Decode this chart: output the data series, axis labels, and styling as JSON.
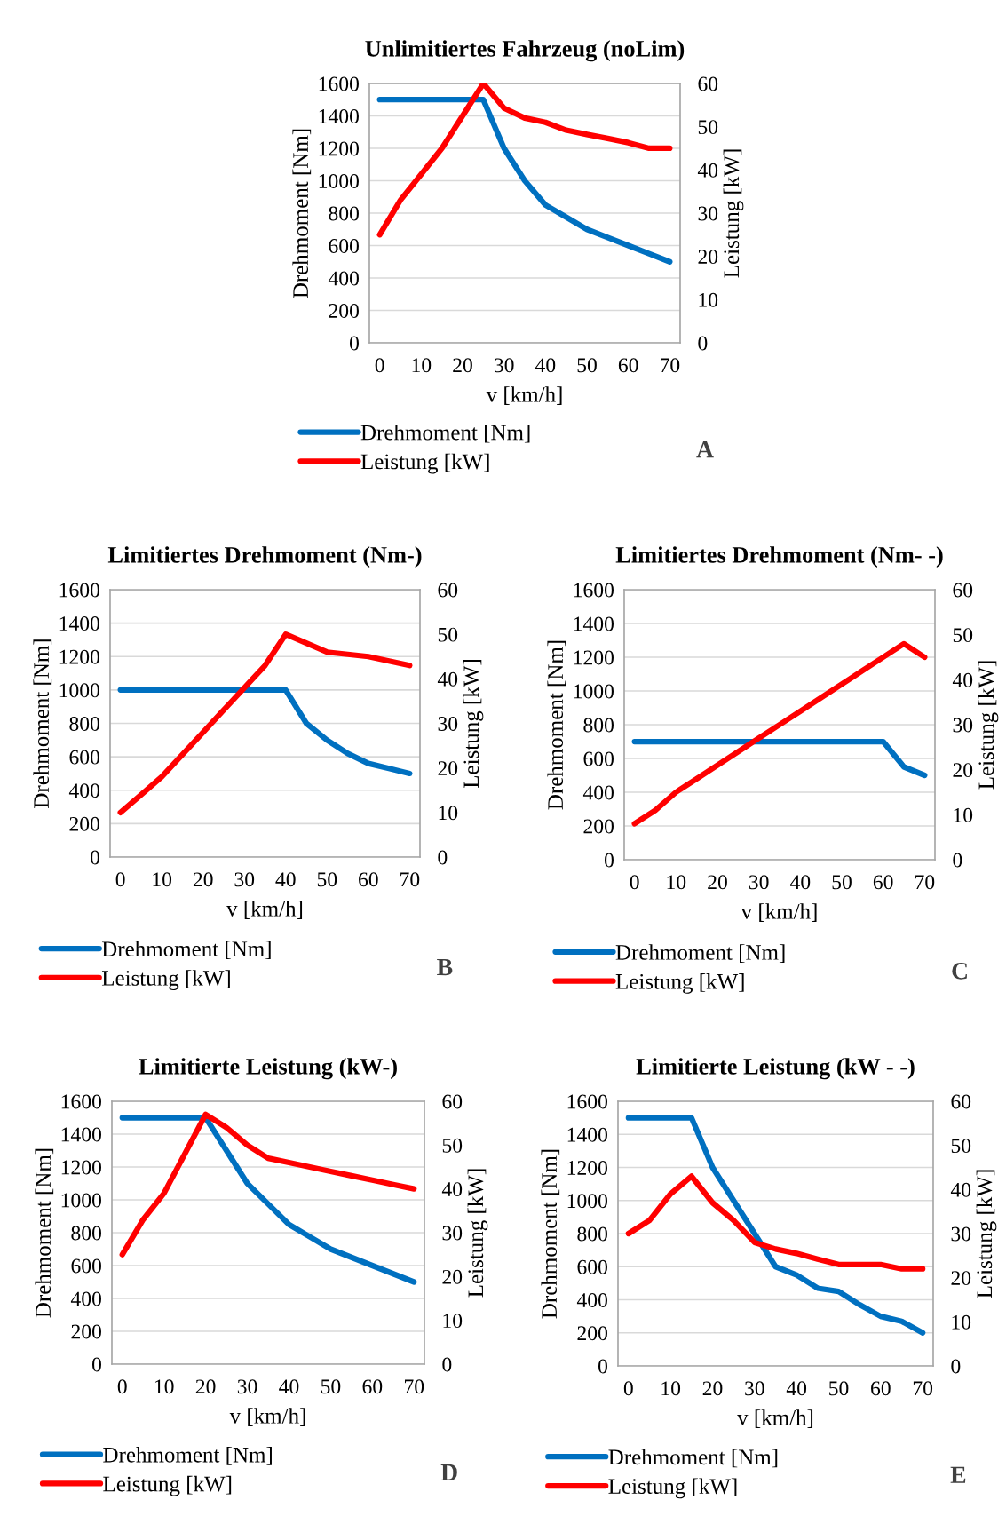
{
  "chart_data": [
    {
      "type": "line",
      "title": "Unlimitiertes Fahrzeug (noLim)",
      "xlabel": "v [km/h]",
      "ylabel": "Drehmoment [Nm]",
      "y2label": "Leistung [kW]",
      "categories": [
        "0",
        null,
        "10",
        null,
        "20",
        null,
        "30",
        null,
        "40",
        null,
        "50",
        null,
        "60",
        null,
        "70"
      ],
      "ylim": [
        0,
        1600
      ],
      "yticks": [
        0,
        200,
        400,
        600,
        800,
        1000,
        1200,
        1400,
        1600
      ],
      "y2lim": [
        0,
        60
      ],
      "y2ticks": [
        0,
        10,
        20,
        30,
        40,
        50,
        60
      ],
      "grid": true,
      "legend": "bottom",
      "annotations": [
        "A"
      ],
      "series": [
        {
          "name": "Drehmoment [Nm]",
          "color": "#0070c0",
          "values": [
            1500,
            1500,
            1500,
            1500,
            1500,
            1500,
            1200,
            1000,
            850,
            775,
            700,
            650,
            600,
            550,
            500
          ]
        },
        {
          "name": "Leistung [kW]",
          "color": "#ff0000",
          "axis": "y2",
          "values": [
            25,
            33,
            39,
            45,
            52.5,
            60,
            54.3,
            52,
            51,
            49.2,
            48.2,
            47.3,
            46.3,
            45,
            45
          ]
        }
      ]
    },
    {
      "type": "line",
      "title": "Limitiertes Drehmoment (Nm-)",
      "xlabel": "v [km/h]",
      "ylabel": "Drehmoment [Nm]",
      "y2label": "Leistung [kW]",
      "categories": [
        "0",
        null,
        "10",
        null,
        "20",
        null,
        "30",
        null,
        "40",
        null,
        "50",
        null,
        "60",
        null,
        "70"
      ],
      "ylim": [
        0,
        1600
      ],
      "yticks": [
        0,
        200,
        400,
        600,
        800,
        1000,
        1200,
        1400,
        1600
      ],
      "y2lim": [
        0,
        60
      ],
      "y2ticks": [
        0,
        10,
        20,
        30,
        40,
        50,
        60
      ],
      "grid": true,
      "legend": "bottom",
      "annotations": [
        "B"
      ],
      "series": [
        {
          "name": "Drehmoment [Nm]",
          "color": "#0070c0",
          "values": [
            1000,
            1000,
            1000,
            1000,
            1000,
            1000,
            1000,
            1000,
            1000,
            800,
            700,
            620,
            560,
            530,
            500
          ]
        },
        {
          "name": "Leistung [kW]",
          "color": "#ff0000",
          "axis": "y2",
          "values": [
            10,
            14,
            18,
            23,
            28,
            33,
            38,
            43,
            50,
            48,
            46,
            45.5,
            45,
            44,
            43
          ]
        }
      ]
    },
    {
      "type": "line",
      "title": "Limitiertes Drehmoment (Nm- -)",
      "xlabel": "v [km/h]",
      "ylabel": "Drehmoment [Nm]",
      "y2label": "Leistung [kW]",
      "categories": [
        "0",
        null,
        "10",
        null,
        "20",
        null,
        "30",
        null,
        "40",
        null,
        "50",
        null,
        "60",
        null,
        "70"
      ],
      "ylim": [
        0,
        1600
      ],
      "yticks": [
        0,
        200,
        400,
        600,
        800,
        1000,
        1200,
        1400,
        1600
      ],
      "y2lim": [
        0,
        60
      ],
      "y2ticks": [
        0,
        10,
        20,
        30,
        40,
        50,
        60
      ],
      "grid": true,
      "legend": "bottom",
      "annotations": [
        "C"
      ],
      "series": [
        {
          "name": "Drehmoment [Nm]",
          "color": "#0070c0",
          "values": [
            700,
            700,
            700,
            700,
            700,
            700,
            700,
            700,
            700,
            700,
            700,
            700,
            700,
            550,
            500
          ]
        },
        {
          "name": "Leistung [kW]",
          "color": "#ff0000",
          "axis": "y2",
          "values": [
            8,
            11,
            15,
            18,
            21,
            24,
            27,
            30,
            33,
            36,
            39,
            42,
            45,
            48,
            45
          ]
        }
      ]
    },
    {
      "type": "line",
      "title": "Limitierte Leistung (kW-)",
      "xlabel": "v [km/h]",
      "ylabel": "Drehmoment [Nm]",
      "y2label": "Leistung [kW]",
      "categories": [
        "0",
        null,
        "10",
        null,
        "20",
        null,
        "30",
        null,
        "40",
        null,
        "50",
        null,
        "60",
        null,
        "70"
      ],
      "ylim": [
        0,
        1600
      ],
      "yticks": [
        0,
        200,
        400,
        600,
        800,
        1000,
        1200,
        1400,
        1600
      ],
      "y2lim": [
        0,
        60
      ],
      "y2ticks": [
        0,
        10,
        20,
        30,
        40,
        50,
        60
      ],
      "grid": true,
      "legend": "bottom",
      "annotations": [
        "D"
      ],
      "series": [
        {
          "name": "Drehmoment [Nm]",
          "color": "#0070c0",
          "values": [
            1500,
            1500,
            1500,
            1500,
            1500,
            1300,
            1100,
            975,
            850,
            775,
            700,
            650,
            600,
            550,
            500
          ]
        },
        {
          "name": "Leistung [kW]",
          "color": "#ff0000",
          "axis": "y2",
          "values": [
            25,
            33,
            39,
            48,
            57,
            54,
            50,
            47,
            46,
            45,
            44,
            43,
            42,
            41,
            40
          ]
        }
      ]
    },
    {
      "type": "line",
      "title": "Limitierte Leistung (kW - -)",
      "xlabel": "v [km/h]",
      "ylabel": "Drehmoment [Nm]",
      "y2label": "Leistung [kW]",
      "categories": [
        "0",
        null,
        "10",
        null,
        "20",
        null,
        "30",
        null,
        "40",
        null,
        "50",
        null,
        "60",
        null,
        "70"
      ],
      "ylim": [
        0,
        1600
      ],
      "yticks": [
        0,
        200,
        400,
        600,
        800,
        1000,
        1200,
        1400,
        1600
      ],
      "y2lim": [
        0,
        60
      ],
      "y2ticks": [
        0,
        10,
        20,
        30,
        40,
        50,
        60
      ],
      "grid": true,
      "legend": "bottom",
      "annotations": [
        "E"
      ],
      "series": [
        {
          "name": "Drehmoment [Nm]",
          "color": "#0070c0",
          "values": [
            1500,
            1500,
            1500,
            1500,
            1200,
            1000,
            800,
            600,
            550,
            470,
            450,
            370,
            300,
            270,
            200
          ]
        },
        {
          "name": "Leistung [kW]",
          "color": "#ff0000",
          "axis": "y2",
          "values": [
            30,
            33,
            39,
            43,
            37,
            33,
            28,
            26.5,
            25.5,
            24.2,
            23,
            23,
            23,
            22,
            22
          ]
        }
      ]
    }
  ]
}
